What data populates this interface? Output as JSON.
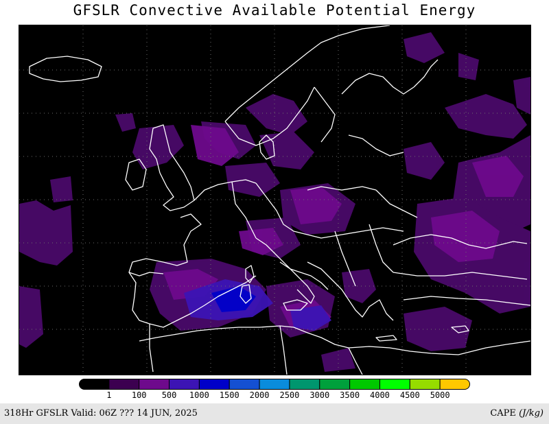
{
  "title": "GFSLR Convective Available Potential Energy",
  "footer": {
    "valid_text": "318Hr GFSLR Valid: 06Z ??? 14 JUN, 2025",
    "units_prefix": "CAPE ",
    "units_italic": "(J/kg)"
  },
  "colorbar": {
    "labels": [
      "1",
      "100",
      "500",
      "1000",
      "1500",
      "2000",
      "2500",
      "3000",
      "3500",
      "4000",
      "4500",
      "5000"
    ],
    "colors": [
      "#000000",
      "#3c0050",
      "#6e0a8c",
      "#3c14b4",
      "#0000c8",
      "#1450d2",
      "#0a8cdc",
      "#00966e",
      "#00a03c",
      "#00c800",
      "#00ff00",
      "#96dc00",
      "#ffc800"
    ]
  },
  "map": {
    "region": "Europe",
    "field": "CAPE",
    "coastline_color": "#ffffff",
    "grid_color": "#6e6e6e"
  }
}
